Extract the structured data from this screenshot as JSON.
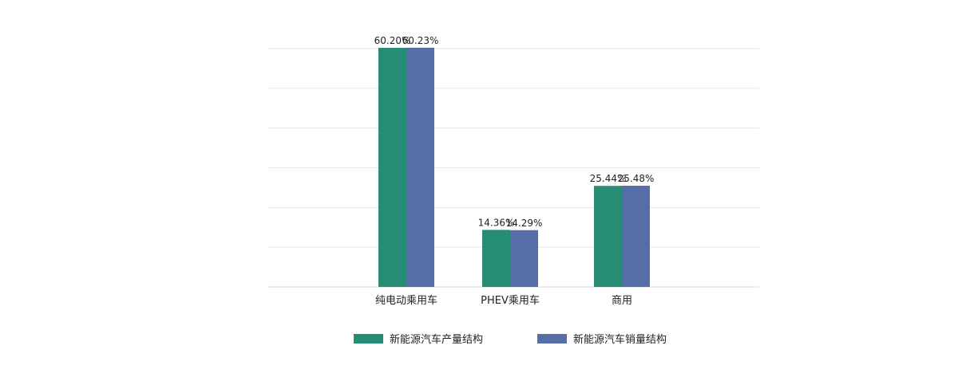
{
  "chart_data": {
    "type": "bar",
    "categories": [
      "纯电动乘用车",
      "PHEV乘用车",
      "商用"
    ],
    "series": [
      {
        "name": "新能源汽车产量结构",
        "values": [
          60.2,
          14.36,
          25.44
        ],
        "labels": [
          "60.20%",
          "14.36%",
          "25.44%"
        ],
        "color": "#268c74"
      },
      {
        "name": "新能源汽车销量结构",
        "values": [
          60.23,
          14.29,
          25.48
        ],
        "labels": [
          "60.23%",
          "14.29%",
          "25.48%"
        ],
        "color": "#566ea8"
      }
    ],
    "ylim": [
      0,
      60
    ],
    "grid": true,
    "legend": "bottom-center",
    "gridline_color": "#e6e6e6",
    "baseline_color": "#d9d9d9"
  }
}
